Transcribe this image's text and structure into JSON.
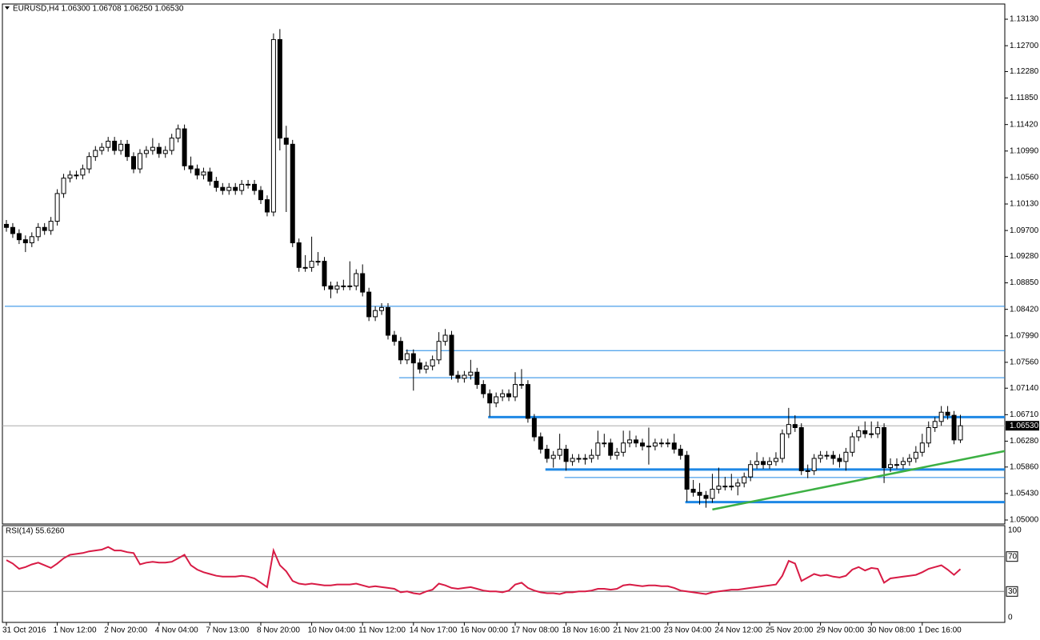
{
  "chart_data": {
    "type": "candlestick",
    "header": "EURUSD,H4  1.06300 1.06708 1.06250 1.06530",
    "categories": [
      "31 Oct 2016",
      null,
      null,
      null,
      null,
      null,
      null,
      null,
      "1 Nov 12:00",
      null,
      null,
      null,
      null,
      null,
      null,
      null,
      "2 Nov 20:00",
      null,
      null,
      null,
      null,
      null,
      null,
      null,
      "4 Nov 04:00",
      null,
      null,
      null,
      null,
      null,
      null,
      null,
      "7 Nov 13:00",
      null,
      null,
      null,
      null,
      null,
      null,
      null,
      "8 Nov 20:00",
      null,
      null,
      null,
      null,
      null,
      null,
      null,
      "10 Nov 04:00",
      null,
      null,
      null,
      null,
      null,
      null,
      null,
      "11 Nov 12:00",
      null,
      null,
      null,
      null,
      null,
      null,
      null,
      "14 Nov 17:00",
      null,
      null,
      null,
      null,
      null,
      null,
      null,
      "16 Nov 00:00",
      null,
      null,
      null,
      null,
      null,
      null,
      null,
      "17 Nov 08:00",
      null,
      null,
      null,
      null,
      null,
      null,
      null,
      "18 Nov 16:00",
      null,
      null,
      null,
      null,
      null,
      null,
      null,
      "21 Nov 21:00",
      null,
      null,
      null,
      null,
      null,
      null,
      null,
      "23 Nov 04:00",
      null,
      null,
      null,
      null,
      null,
      null,
      null,
      "24 Nov 12:00",
      null,
      null,
      null,
      null,
      null,
      null,
      null,
      "25 Nov 20:00",
      null,
      null,
      null,
      null,
      null,
      null,
      null,
      "29 Nov 00:00",
      null,
      null,
      null,
      null,
      null,
      null,
      null,
      "30 Nov 08:00",
      null,
      null,
      null,
      null,
      null,
      null,
      null,
      "1 Dec 16:00",
      null,
      null,
      null,
      null,
      null,
      null
    ],
    "open": [
      1.098,
      1.0975,
      1.0965,
      1.0955,
      1.095,
      1.096,
      1.0975,
      1.097,
      1.0985,
      1.103,
      1.1055,
      1.106,
      1.106,
      1.107,
      1.109,
      1.11,
      1.1105,
      1.1115,
      1.11,
      1.111,
      1.109,
      1.107,
      1.1095,
      1.11,
      1.1105,
      1.1095,
      1.11,
      1.112,
      1.1135,
      1.1075,
      1.107,
      1.106,
      1.1065,
      1.105,
      1.104,
      1.1035,
      1.104,
      1.1035,
      1.1045,
      1.1045,
      1.1035,
      1.102,
      1.1,
      1.128,
      1.112,
      1.111,
      1.095,
      1.091,
      1.091,
      1.092,
      1.092,
      1.088,
      1.0875,
      1.088,
      1.088,
      1.088,
      1.09,
      1.087,
      1.083,
      1.084,
      1.0845,
      1.08,
      1.079,
      1.076,
      1.077,
      1.0755,
      1.0745,
      1.075,
      1.076,
      1.079,
      1.08,
      1.0735,
      1.073,
      1.0735,
      1.074,
      1.072,
      1.0705,
      1.069,
      1.07,
      1.0705,
      1.07,
      1.072,
      1.072,
      1.0665,
      1.0635,
      1.0615,
      1.06,
      1.0605,
      1.0615,
      1.0595,
      1.06,
      1.06,
      1.06,
      1.0605,
      1.0625,
      1.0625,
      1.0605,
      1.061,
      1.0625,
      1.063,
      1.0625,
      1.062,
      1.062,
      1.0625,
      1.0625,
      1.0625,
      1.0615,
      1.0605,
      1.055,
      1.0545,
      1.054,
      1.0535,
      1.055,
      1.0555,
      1.0555,
      1.0555,
      1.056,
      1.057,
      1.059,
      1.0595,
      1.059,
      1.0595,
      1.06,
      1.064,
      1.0655,
      1.065,
      1.058,
      1.058,
      1.06,
      1.0605,
      1.0605,
      1.06,
      1.0595,
      1.061,
      1.0635,
      1.0645,
      1.064,
      1.064,
      1.065,
      1.0585,
      1.059,
      1.059,
      1.0595,
      1.06,
      1.061,
      1.0625,
      1.065,
      1.066,
      1.0675,
      1.067,
      1.063
    ],
    "high": [
      1.0987,
      1.0982,
      1.0972,
      1.0962,
      1.0967,
      1.0982,
      1.0982,
      1.0992,
      1.1037,
      1.1062,
      1.1067,
      1.1067,
      1.1077,
      1.1097,
      1.1107,
      1.1112,
      1.1122,
      1.1122,
      1.1117,
      1.1117,
      1.1097,
      1.1102,
      1.1107,
      1.112,
      1.1112,
      1.1107,
      1.1127,
      1.1142,
      1.1142,
      1.109,
      1.1077,
      1.1072,
      1.1072,
      1.1057,
      1.1047,
      1.1047,
      1.1047,
      1.1052,
      1.1052,
      1.1052,
      1.1042,
      1.1027,
      1.129,
      1.1297,
      1.114,
      1.1117,
      1.0957,
      1.093,
      1.096,
      1.0935,
      1.0927,
      1.0887,
      1.0887,
      1.089,
      1.092,
      1.0907,
      1.0915,
      1.0877,
      1.0847,
      1.0852,
      1.0852,
      1.0807,
      1.0797,
      1.0777,
      1.0777,
      1.0762,
      1.0757,
      1.0767,
      1.0805,
      1.081,
      1.0807,
      1.0742,
      1.0742,
      1.076,
      1.0747,
      1.0727,
      1.0712,
      1.0707,
      1.0712,
      1.0712,
      1.074,
      1.0745,
      1.0727,
      1.0672,
      1.0642,
      1.0622,
      1.0612,
      1.064,
      1.0622,
      1.0607,
      1.0607,
      1.0607,
      1.0615,
      1.0645,
      1.064,
      1.0632,
      1.0617,
      1.0645,
      1.0645,
      1.0637,
      1.0632,
      1.065,
      1.0632,
      1.0632,
      1.0632,
      1.064,
      1.0622,
      1.0612,
      1.0565,
      1.056,
      1.0547,
      1.0575,
      1.0585,
      1.057,
      1.0575,
      1.0567,
      1.0577,
      1.0597,
      1.061,
      1.0602,
      1.0602,
      1.061,
      1.0647,
      1.0682,
      1.067,
      1.0657,
      1.059,
      1.0607,
      1.0612,
      1.0612,
      1.0612,
      1.0607,
      1.0617,
      1.0642,
      1.0652,
      1.066,
      1.066,
      1.066,
      1.0657,
      1.06,
      1.06,
      1.0602,
      1.0607,
      1.062,
      1.064,
      1.066,
      1.0667,
      1.0685,
      1.0685,
      1.0677,
      1.06708
    ],
    "low": [
      1.0968,
      1.0958,
      1.0948,
      1.0935,
      1.0943,
      1.0953,
      1.0963,
      1.0963,
      1.0978,
      1.1023,
      1.1048,
      1.1053,
      1.1053,
      1.1063,
      1.1083,
      1.1093,
      1.1098,
      1.1093,
      1.1093,
      1.1083,
      1.1063,
      1.1063,
      1.1088,
      1.1093,
      1.1088,
      1.1088,
      1.1093,
      1.1113,
      1.1068,
      1.1063,
      1.1053,
      1.1053,
      1.1043,
      1.1033,
      1.1028,
      1.1028,
      1.1028,
      1.1028,
      1.1038,
      1.1028,
      1.1013,
      1.0993,
      1.0993,
      1.11,
      1.1,
      1.0943,
      1.0903,
      1.0903,
      1.0903,
      1.0913,
      1.0873,
      1.086,
      1.0868,
      1.0873,
      1.0873,
      1.0873,
      1.0863,
      1.0823,
      1.0823,
      1.0833,
      1.0793,
      1.0783,
      1.0753,
      1.0753,
      1.071,
      1.0738,
      1.0738,
      1.0743,
      1.0753,
      1.0783,
      1.0728,
      1.0723,
      1.0723,
      1.0728,
      1.0713,
      1.0698,
      1.0668,
      1.0683,
      1.0693,
      1.0693,
      1.0693,
      1.0713,
      1.0658,
      1.0628,
      1.0608,
      1.0593,
      1.0585,
      1.0598,
      1.058,
      1.0588,
      1.0593,
      1.059,
      1.0593,
      1.0598,
      1.0618,
      1.0598,
      1.0598,
      1.0603,
      1.0618,
      1.0618,
      1.0613,
      1.059,
      1.0613,
      1.0618,
      1.0618,
      1.0608,
      1.0598,
      1.053,
      1.0538,
      1.0525,
      1.052,
      1.0528,
      1.0543,
      1.0548,
      1.0548,
      1.054,
      1.0553,
      1.0563,
      1.0583,
      1.0583,
      1.0583,
      1.0588,
      1.0593,
      1.0633,
      1.0643,
      1.0573,
      1.0568,
      1.0573,
      1.0593,
      1.0598,
      1.059,
      1.0585,
      1.058,
      1.0603,
      1.0628,
      1.0633,
      1.0633,
      1.0633,
      1.056,
      1.0578,
      1.0583,
      1.0583,
      1.0588,
      1.0593,
      1.0603,
      1.0618,
      1.0643,
      1.0653,
      1.0663,
      1.0623,
      1.0625
    ],
    "close": [
      1.0975,
      1.0965,
      1.0955,
      1.095,
      1.096,
      1.0975,
      1.097,
      1.0985,
      1.103,
      1.1055,
      1.106,
      1.106,
      1.107,
      1.109,
      1.11,
      1.1105,
      1.1115,
      1.11,
      1.111,
      1.109,
      1.107,
      1.1095,
      1.11,
      1.1105,
      1.1095,
      1.11,
      1.112,
      1.1135,
      1.1075,
      1.107,
      1.106,
      1.1065,
      1.105,
      1.104,
      1.1035,
      1.104,
      1.1035,
      1.1045,
      1.1045,
      1.1035,
      1.102,
      1.1,
      1.128,
      1.112,
      1.111,
      1.095,
      1.091,
      1.091,
      1.092,
      1.092,
      1.088,
      1.0875,
      1.088,
      1.088,
      1.088,
      1.09,
      1.087,
      1.083,
      1.084,
      1.0845,
      1.08,
      1.079,
      1.076,
      1.077,
      1.0755,
      1.0745,
      1.075,
      1.076,
      1.079,
      1.08,
      1.0735,
      1.073,
      1.0735,
      1.074,
      1.072,
      1.0705,
      1.069,
      1.07,
      1.0705,
      1.07,
      1.072,
      1.072,
      1.0665,
      1.0635,
      1.0615,
      1.06,
      1.0605,
      1.0615,
      1.0595,
      1.06,
      1.06,
      1.06,
      1.0605,
      1.0625,
      1.0625,
      1.0605,
      1.061,
      1.0625,
      1.063,
      1.0625,
      1.062,
      1.062,
      1.0625,
      1.0625,
      1.0625,
      1.0615,
      1.0605,
      1.055,
      1.0545,
      1.054,
      1.0535,
      1.055,
      1.0555,
      1.0555,
      1.0555,
      1.056,
      1.057,
      1.059,
      1.0595,
      1.059,
      1.0595,
      1.06,
      1.064,
      1.0655,
      1.065,
      1.058,
      1.058,
      1.06,
      1.0605,
      1.0605,
      1.06,
      1.0595,
      1.061,
      1.0635,
      1.0645,
      1.064,
      1.064,
      1.065,
      1.0585,
      1.059,
      1.059,
      1.0595,
      1.06,
      1.061,
      1.0625,
      1.065,
      1.066,
      1.0675,
      1.067,
      1.063,
      1.0653
    ],
    "up_color": "#ffffff",
    "down_color": "#000000",
    "ylim": [
      1.04935,
      1.13377
    ],
    "yticks": [
      {
        "value": 1.1313,
        "label": "1.13130"
      },
      {
        "value": 1.127,
        "label": "1.12700"
      },
      {
        "value": 1.1228,
        "label": "1.12280"
      },
      {
        "value": 1.1185,
        "label": "1.11850"
      },
      {
        "value": 1.1142,
        "label": "1.11420"
      },
      {
        "value": 1.1099,
        "label": "1.10990"
      },
      {
        "value": 1.1056,
        "label": "1.10560"
      },
      {
        "value": 1.1013,
        "label": "1.10130"
      },
      {
        "value": 1.097,
        "label": "1.09700"
      },
      {
        "value": 1.0928,
        "label": "1.09280"
      },
      {
        "value": 1.0885,
        "label": "1.08850"
      },
      {
        "value": 1.0842,
        "label": "1.08420"
      },
      {
        "value": 1.0799,
        "label": "1.07990"
      },
      {
        "value": 1.0756,
        "label": "1.07560"
      },
      {
        "value": 1.0714,
        "label": "1.07140"
      },
      {
        "value": 1.0671,
        "label": "1.06710"
      },
      {
        "value": 1.0628,
        "label": "1.06280"
      },
      {
        "value": 1.0586,
        "label": "1.05860"
      },
      {
        "value": 1.0543,
        "label": "1.05430"
      },
      {
        "value": 1.05,
        "label": "1.05000"
      }
    ],
    "current_price": {
      "value": 1.0653,
      "label": "1.06530"
    },
    "levels": [
      {
        "price": 1.0847,
        "from": 0,
        "color": "#1e88e5",
        "width": 1
      },
      {
        "price": 1.0775,
        "from": 63,
        "color": "#1e88e5",
        "width": 1
      },
      {
        "price": 1.0731,
        "from": 62,
        "color": "#1e88e5",
        "width": 1
      },
      {
        "price": 1.0667,
        "from": 76,
        "color": "#1e88e5",
        "width": 3
      },
      {
        "price": 1.0582,
        "from": 85,
        "color": "#1e88e5",
        "width": 3
      },
      {
        "price": 1.0569,
        "from": 88,
        "color": "#1e88e5",
        "width": 1
      },
      {
        "price": 1.0529,
        "from": 107,
        "color": "#1e88e5",
        "width": 3
      }
    ],
    "trendline": {
      "x": [
        111,
        157
      ],
      "y": [
        1.0517,
        1.0612
      ],
      "color": "#3cb043"
    },
    "rsi": {
      "title": "RSI(14) 55.6260",
      "color": "#d81b45",
      "ylim": [
        -5.5,
        105.5
      ],
      "yticks": [
        100,
        70,
        30,
        0
      ],
      "levels": [
        70,
        30
      ],
      "values": [
        66,
        62,
        56,
        58,
        61,
        63,
        60,
        57,
        62,
        68,
        72,
        73,
        74,
        76,
        77,
        78,
        81,
        77,
        77,
        75,
        74,
        61,
        63,
        64,
        63,
        63,
        64,
        68,
        72,
        60,
        55,
        52,
        50,
        48,
        47,
        47,
        47,
        48,
        47,
        45,
        40,
        35,
        77,
        60,
        53,
        42,
        39,
        38,
        39,
        38,
        37,
        37,
        38,
        38,
        38,
        39,
        37,
        35,
        36,
        35,
        34,
        33,
        29,
        30,
        28,
        27,
        30,
        32,
        39,
        37,
        34,
        33,
        34,
        35,
        33,
        31,
        30,
        30,
        29,
        31,
        38,
        40,
        34,
        31,
        29,
        28,
        28,
        27,
        29,
        29,
        30,
        30,
        31,
        33,
        33,
        32,
        33,
        37,
        38,
        37,
        36,
        37,
        37,
        36,
        36,
        34,
        31,
        30,
        29,
        28,
        27,
        29,
        30,
        31,
        32,
        32,
        33,
        34,
        35,
        36,
        37,
        38,
        48,
        65,
        62,
        42,
        46,
        50,
        48,
        49,
        47,
        46,
        48,
        55,
        58,
        54,
        57,
        56,
        40,
        45,
        46,
        47,
        48,
        49,
        52,
        56,
        58,
        60,
        55,
        49,
        55.626
      ]
    }
  }
}
